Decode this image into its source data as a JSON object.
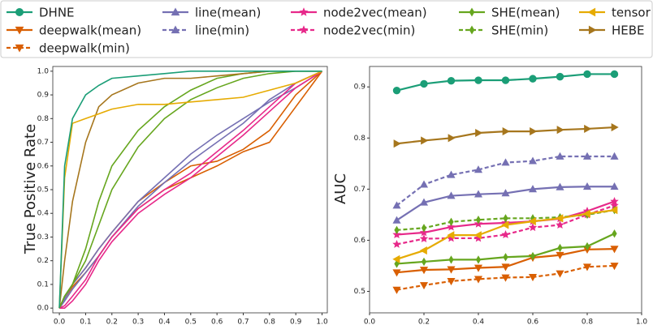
{
  "chart_data": [
    {
      "type": "line",
      "ylabel": "True Positive Rate",
      "x": [
        0,
        0.02,
        0.05,
        0.1,
        0.15,
        0.2,
        0.3,
        0.4,
        0.5,
        0.6,
        0.7,
        0.8,
        0.9,
        1.0
      ],
      "xlim": [
        -0.025,
        1.02
      ],
      "ylim": [
        -0.02,
        1.02
      ],
      "xticks": [
        {
          "value": 0,
          "label": "0.0"
        },
        0.1,
        0.2,
        0.3,
        0.4,
        0.5,
        0.6,
        0.7,
        0.8,
        0.9,
        {
          "value": 1,
          "label": "1.0"
        }
      ],
      "yticks": [
        {
          "value": 0,
          "label": "0.0"
        },
        0.1,
        0.2,
        0.3,
        0.4,
        0.5,
        0.6,
        0.7,
        0.8,
        0.9,
        {
          "value": 1,
          "label": "1.0"
        }
      ],
      "series": [
        {
          "color": "#d95f02",
          "values": [
            0,
            0.05,
            0.1,
            0.17,
            0.25,
            0.32,
            0.45,
            0.53,
            0.6,
            0.62,
            0.67,
            0.75,
            0.9,
            1
          ]
        },
        {
          "color": "#d95f02",
          "values": [
            0,
            0.04,
            0.09,
            0.15,
            0.22,
            0.3,
            0.42,
            0.5,
            0.55,
            0.6,
            0.66,
            0.7,
            0.85,
            1
          ]
        },
        {
          "color": "#7570b3",
          "values": [
            0,
            0.03,
            0.08,
            0.15,
            0.22,
            0.3,
            0.43,
            0.53,
            0.62,
            0.7,
            0.78,
            0.88,
            0.95,
            1
          ]
        },
        {
          "color": "#7570b3",
          "values": [
            0,
            0.04,
            0.1,
            0.17,
            0.25,
            0.32,
            0.45,
            0.55,
            0.65,
            0.73,
            0.8,
            0.87,
            0.93,
            1
          ]
        },
        {
          "color": "#e7298a",
          "values": [
            0,
            0,
            0.03,
            0.1,
            0.2,
            0.28,
            0.4,
            0.48,
            0.55,
            0.64,
            0.73,
            0.83,
            0.93,
            1
          ]
        },
        {
          "color": "#e7298a",
          "values": [
            0,
            0.01,
            0.05,
            0.12,
            0.22,
            0.3,
            0.42,
            0.5,
            0.57,
            0.66,
            0.75,
            0.85,
            0.95,
            1
          ]
        },
        {
          "color": "#66a61e",
          "values": [
            0,
            0.05,
            0.1,
            0.25,
            0.45,
            0.6,
            0.75,
            0.85,
            0.92,
            0.97,
            0.99,
            1,
            1,
            1
          ]
        },
        {
          "color": "#66a61e",
          "values": [
            0,
            0.05,
            0.1,
            0.2,
            0.35,
            0.5,
            0.68,
            0.8,
            0.88,
            0.93,
            0.97,
            0.99,
            1,
            1
          ]
        },
        {
          "color": "#a6761d",
          "values": [
            0,
            0.2,
            0.45,
            0.7,
            0.85,
            0.9,
            0.95,
            0.97,
            0.97,
            0.98,
            0.99,
            1,
            1,
            1
          ]
        },
        {
          "color": "#e6ab02",
          "values": [
            0,
            0.55,
            0.78,
            0.8,
            0.82,
            0.84,
            0.86,
            0.86,
            0.87,
            0.88,
            0.89,
            0.92,
            0.95,
            1
          ]
        },
        {
          "color": "#1b9e77",
          "values": [
            0,
            0.6,
            0.8,
            0.9,
            0.94,
            0.97,
            0.98,
            0.99,
            1,
            1,
            1,
            1,
            1,
            1
          ]
        }
      ]
    },
    {
      "type": "line",
      "ylabel": "AUC",
      "x": [
        0.1,
        0.2,
        0.3,
        0.4,
        0.5,
        0.6,
        0.7,
        0.8,
        0.9
      ],
      "xlim": [
        0,
        1
      ],
      "ylim": [
        0.458,
        0.94
      ],
      "xticks": [
        {
          "value": 0,
          "label": "0.0"
        },
        0.2,
        0.4,
        0.6,
        0.8,
        {
          "value": 1,
          "label": "1.0"
        }
      ],
      "yticks": [
        0.5,
        0.6,
        0.7,
        0.8,
        0.9
      ],
      "series": [
        {
          "name": "DHNE",
          "color": "#1b9e77",
          "marker": "circle",
          "dashed": false,
          "values": [
            0.893,
            0.906,
            0.912,
            0.913,
            0.913,
            0.916,
            0.92,
            0.925,
            0.925
          ]
        },
        {
          "name": "deepwalk(mean)",
          "color": "#d95f02",
          "marker": "tri-down",
          "dashed": false,
          "values": [
            0.537,
            0.542,
            0.543,
            0.546,
            0.548,
            0.566,
            0.571,
            0.582,
            0.583
          ]
        },
        {
          "name": "deepwalk(min)",
          "color": "#d95f02",
          "marker": "tri-down",
          "dashed": true,
          "values": [
            0.503,
            0.512,
            0.52,
            0.524,
            0.527,
            0.528,
            0.535,
            0.548,
            0.55
          ]
        },
        {
          "name": "line(mean)",
          "color": "#7570b3",
          "marker": "tri-up",
          "dashed": false,
          "values": [
            0.639,
            0.674,
            0.687,
            0.69,
            0.692,
            0.7,
            0.704,
            0.705,
            0.705
          ]
        },
        {
          "name": "line(min)",
          "color": "#7570b3",
          "marker": "tri-up",
          "dashed": true,
          "values": [
            0.668,
            0.709,
            0.728,
            0.738,
            0.752,
            0.755,
            0.764,
            0.764,
            0.764
          ]
        },
        {
          "name": "node2vec(mean)",
          "color": "#e7298a",
          "marker": "star",
          "dashed": false,
          "values": [
            0.611,
            0.615,
            0.626,
            0.632,
            0.634,
            0.637,
            0.642,
            0.657,
            0.676
          ]
        },
        {
          "name": "node2vec(min)",
          "color": "#e7298a",
          "marker": "star",
          "dashed": true,
          "values": [
            0.592,
            0.603,
            0.604,
            0.604,
            0.611,
            0.625,
            0.63,
            0.65,
            0.668
          ]
        },
        {
          "name": "SHE(mean)",
          "color": "#66a61e",
          "marker": "diamond",
          "dashed": false,
          "values": [
            0.554,
            0.558,
            0.562,
            0.562,
            0.567,
            0.569,
            0.585,
            0.588,
            0.613
          ]
        },
        {
          "name": "SHE(min)",
          "color": "#66a61e",
          "marker": "diamond",
          "dashed": true,
          "values": [
            0.62,
            0.624,
            0.636,
            0.64,
            0.643,
            0.643,
            0.645,
            0.65,
            0.659
          ]
        },
        {
          "name": "tensor",
          "color": "#e6ab02",
          "marker": "tri-left",
          "dashed": false,
          "values": [
            0.563,
            0.58,
            0.61,
            0.61,
            0.63,
            0.637,
            0.643,
            0.652,
            0.659
          ]
        },
        {
          "name": "HEBE",
          "color": "#a6761d",
          "marker": "tri-right",
          "dashed": false,
          "values": [
            0.789,
            0.795,
            0.8,
            0.81,
            0.813,
            0.813,
            0.816,
            0.818,
            0.821
          ]
        }
      ]
    }
  ]
}
